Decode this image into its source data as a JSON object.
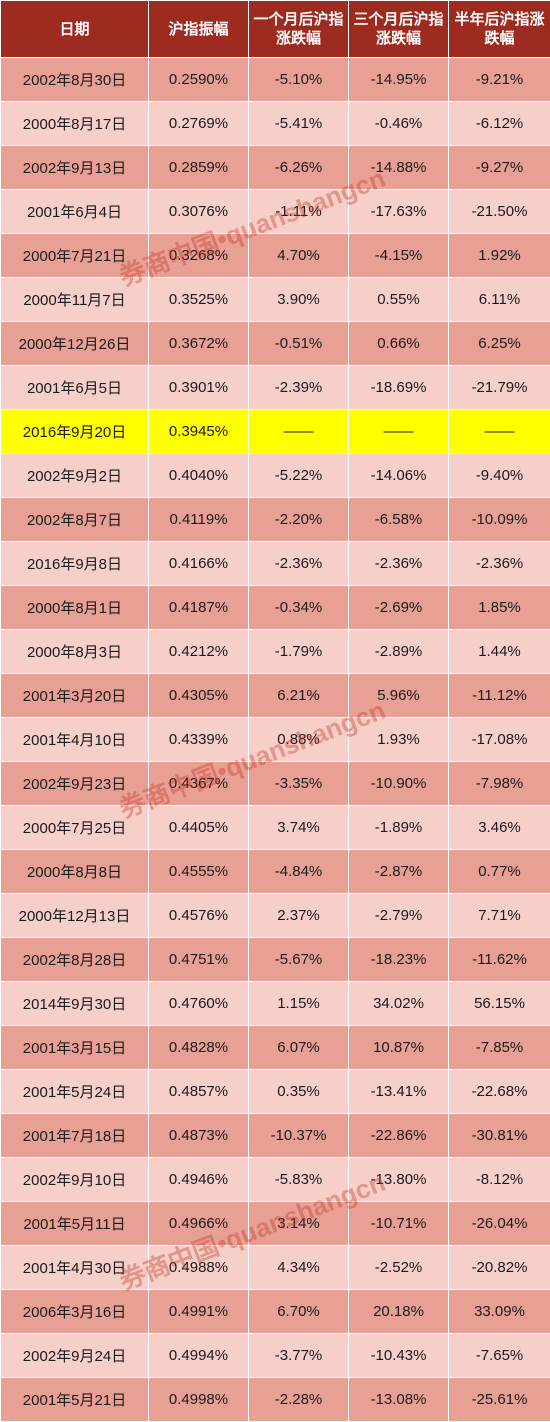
{
  "headers": [
    "日期",
    "沪指振幅",
    "一个月后沪指涨跌幅",
    "三个月后沪指涨跌幅",
    "半年后沪指涨跌幅"
  ],
  "highlight_color": "#ffff00",
  "header_color": "#9d2b20",
  "row_colors": [
    "#e8a094",
    "#f6d0c8"
  ],
  "watermark": "券商中国•quanshangcn",
  "rows": [
    [
      "2002年8月30日",
      "0.2590%",
      "-5.10%",
      "-14.95%",
      "-9.21%"
    ],
    [
      "2000年8月17日",
      "0.2769%",
      "-5.41%",
      "-0.46%",
      "-6.12%"
    ],
    [
      "2002年9月13日",
      "0.2859%",
      "-6.26%",
      "-14.88%",
      "-9.27%"
    ],
    [
      "2001年6月4日",
      "0.3076%",
      "-1.11%",
      "-17.63%",
      "-21.50%"
    ],
    [
      "2000年7月21日",
      "0.3268%",
      "4.70%",
      "-4.15%",
      "1.92%"
    ],
    [
      "2000年11月7日",
      "0.3525%",
      "3.90%",
      "0.55%",
      "6.11%"
    ],
    [
      "2000年12月26日",
      "0.3672%",
      "-0.51%",
      "0.66%",
      "6.25%"
    ],
    [
      "2001年6月5日",
      "0.3901%",
      "-2.39%",
      "-18.69%",
      "-21.79%"
    ],
    [
      "2016年9月20日",
      "0.3945%",
      "——",
      "——",
      "——"
    ],
    [
      "2002年9月2日",
      "0.4040%",
      "-5.22%",
      "-14.06%",
      "-9.40%"
    ],
    [
      "2002年8月7日",
      "0.4119%",
      "-2.20%",
      "-6.58%",
      "-10.09%"
    ],
    [
      "2016年9月8日",
      "0.4166%",
      "-2.36%",
      "-2.36%",
      "-2.36%"
    ],
    [
      "2000年8月1日",
      "0.4187%",
      "-0.34%",
      "-2.69%",
      "1.85%"
    ],
    [
      "2000年8月3日",
      "0.4212%",
      "-1.79%",
      "-2.89%",
      "1.44%"
    ],
    [
      "2001年3月20日",
      "0.4305%",
      "6.21%",
      "5.96%",
      "-11.12%"
    ],
    [
      "2001年4月10日",
      "0.4339%",
      "0.88%",
      "1.93%",
      "-17.08%"
    ],
    [
      "2002年9月23日",
      "0.4367%",
      "-3.35%",
      "-10.90%",
      "-7.98%"
    ],
    [
      "2000年7月25日",
      "0.4405%",
      "3.74%",
      "-1.89%",
      "3.46%"
    ],
    [
      "2000年8月8日",
      "0.4555%",
      "-4.84%",
      "-2.87%",
      "0.77%"
    ],
    [
      "2000年12月13日",
      "0.4576%",
      "2.37%",
      "-2.79%",
      "7.71%"
    ],
    [
      "2002年8月28日",
      "0.4751%",
      "-5.67%",
      "-18.23%",
      "-11.62%"
    ],
    [
      "2014年9月30日",
      "0.4760%",
      "1.15%",
      "34.02%",
      "56.15%"
    ],
    [
      "2001年3月15日",
      "0.4828%",
      "6.07%",
      "10.87%",
      "-7.85%"
    ],
    [
      "2001年5月24日",
      "0.4857%",
      "0.35%",
      "-13.41%",
      "-22.68%"
    ],
    [
      "2001年7月18日",
      "0.4873%",
      "-10.37%",
      "-22.86%",
      "-30.81%"
    ],
    [
      "2002年9月10日",
      "0.4946%",
      "-5.83%",
      "-13.80%",
      "-8.12%"
    ],
    [
      "2001年5月11日",
      "0.4966%",
      "3.14%",
      "-10.71%",
      "-26.04%"
    ],
    [
      "2001年4月30日",
      "0.4988%",
      "4.34%",
      "-2.52%",
      "-20.82%"
    ],
    [
      "2006年3月16日",
      "0.4991%",
      "6.70%",
      "20.18%",
      "33.09%"
    ],
    [
      "2002年9月24日",
      "0.4994%",
      "-3.77%",
      "-10.43%",
      "-7.65%"
    ],
    [
      "2001年5月21日",
      "0.4998%",
      "-2.28%",
      "-13.08%",
      "-25.61%"
    ]
  ]
}
